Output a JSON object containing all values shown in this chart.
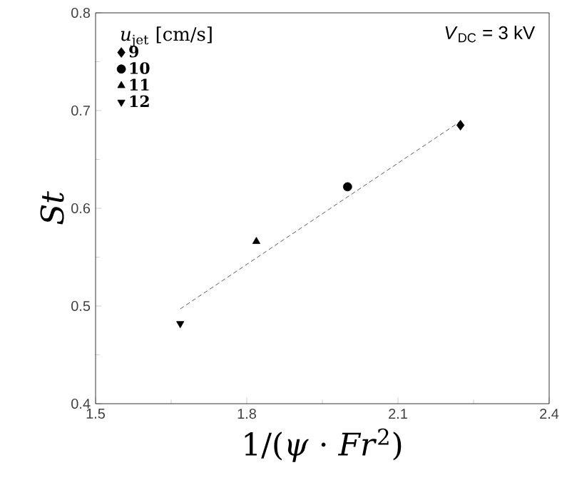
{
  "chart_data": {
    "type": "scatter",
    "xlabel": "1/(*ψ* · *Fr*$^{2}$)",
    "ylabel": "St",
    "legend_title": "*u*$_{jet}$ [cm/s]",
    "legend": "top left",
    "annotations": [
      "*V*$_{DC}$ = 3 kV"
    ],
    "xlim": [
      1.5,
      2.4
    ],
    "xticks": [
      1.5,
      1.8,
      2.1,
      2.4
    ],
    "ylim": [
      0.4,
      0.8
    ],
    "yticks": [
      0.4,
      0.5,
      0.6,
      0.7,
      0.8
    ],
    "grid": false,
    "series": [
      {
        "name": "9",
        "color": "#000000",
        "marker": "diamond",
        "x": [
          2.224
        ],
        "values": [
          0.685
        ]
      },
      {
        "name": "10",
        "color": "#000000",
        "marker": "circle",
        "x": [
          2.0
        ],
        "values": [
          0.622
        ]
      },
      {
        "name": "11",
        "color": "#000000",
        "marker": "triangle",
        "x": [
          1.819
        ],
        "values": [
          0.566
        ]
      },
      {
        "name": "12",
        "color": "#000000",
        "marker": "triangle-down",
        "x": [
          1.668
        ],
        "values": [
          0.482
        ]
      },
      {
        "type": "line",
        "color": "#333333",
        "line_style": "dashed",
        "marker": "none",
        "x": [
          1.668,
          2.224
        ],
        "values": [
          0.497,
          0.689
        ]
      }
    ]
  }
}
